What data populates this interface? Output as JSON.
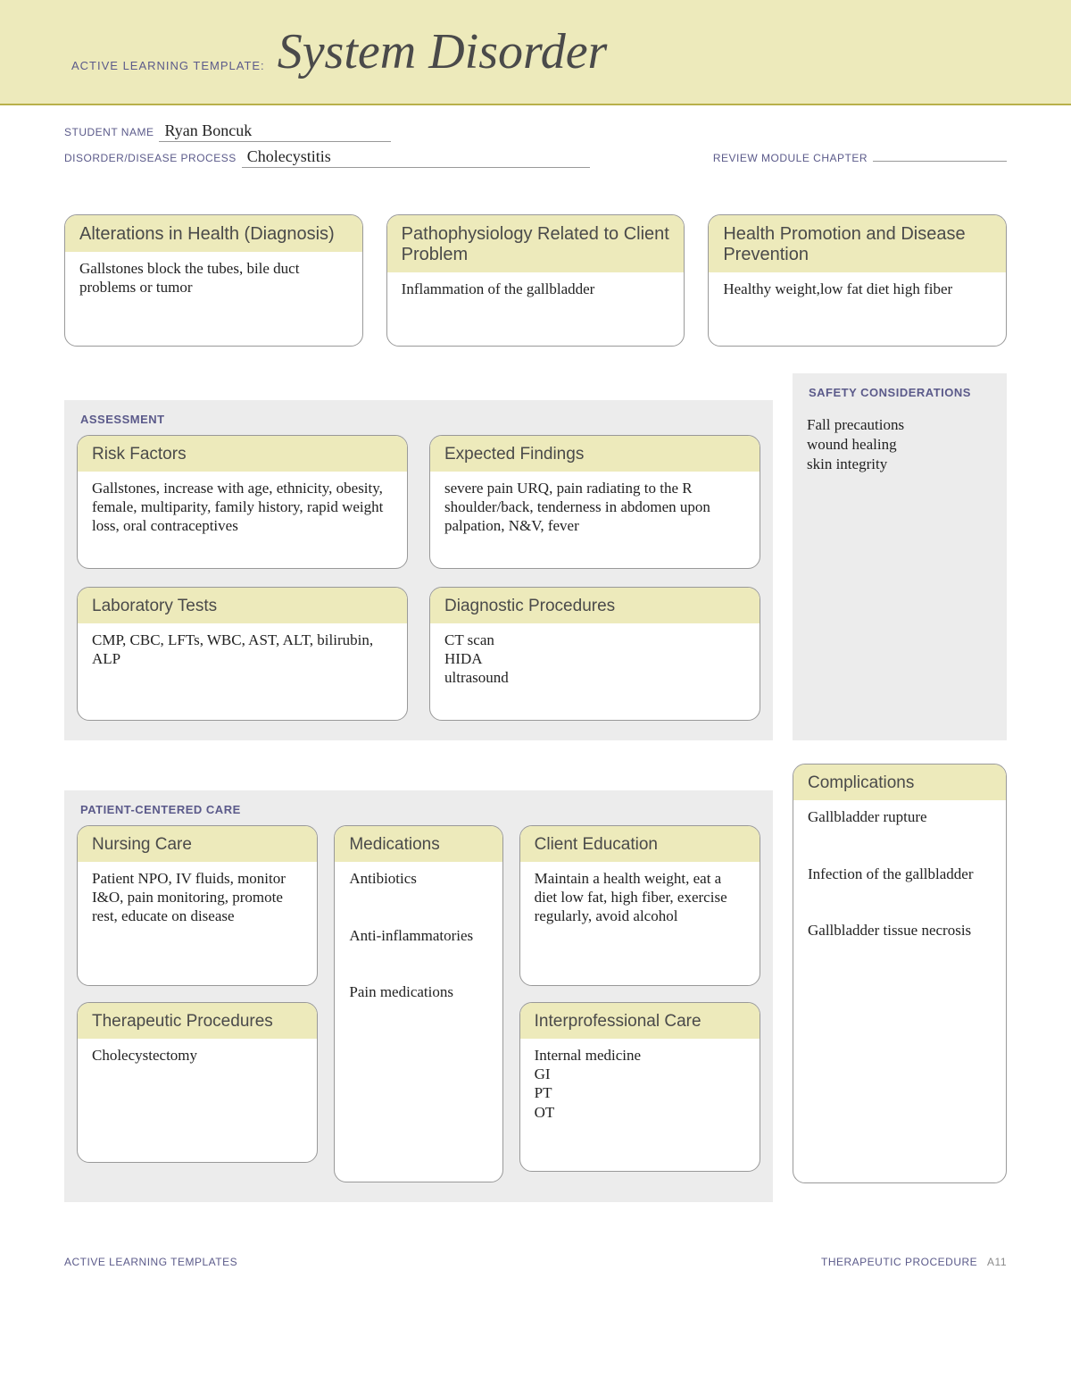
{
  "colors": {
    "band": "#edeabb",
    "band_border": "#b8b04a",
    "section_bg": "#ececec",
    "label_purple": "#5b5a8a",
    "text": "#222222",
    "card_border": "#999999"
  },
  "header": {
    "prefix": "ACTIVE LEARNING TEMPLATE:",
    "title": "System Disorder"
  },
  "fields": {
    "student_name_label": "STUDENT NAME",
    "student_name": "Ryan Boncuk",
    "disorder_label": "DISORDER/DISEASE PROCESS",
    "disorder": "Cholecystitis",
    "review_label": "REVIEW MODULE CHAPTER"
  },
  "top": {
    "alterations": {
      "title": "Alterations in Health (Diagnosis)",
      "body": "Gallstones block the tubes, bile duct problems or tumor"
    },
    "patho": {
      "title": "Pathophysiology Related to Client Problem",
      "body": "Inflammation of the gallbladder"
    },
    "promotion": {
      "title": "Health Promotion and Disease Prevention",
      "body": "Healthy weight,low fat diet high fiber"
    }
  },
  "assessment": {
    "label": "ASSESSMENT",
    "risk": {
      "title": "Risk Factors",
      "body": "Gallstones, increase with age, ethnicity, obesity, female, multiparity, family history, rapid weight loss, oral contraceptives"
    },
    "findings": {
      "title": "Expected Findings",
      "body": "severe pain URQ, pain radiating to the R shoulder/back, tenderness in abdomen upon palpation, N&V, fever"
    },
    "labs": {
      "title": "Laboratory Tests",
      "body": "CMP, CBC, LFTs, WBC, AST, ALT, bilirubin, ALP"
    },
    "diag": {
      "title": "Diagnostic Procedures",
      "body": "CT scan\nHIDA\nultrasound"
    }
  },
  "safety": {
    "label": "SAFETY CONSIDERATIONS",
    "body": "Fall precautions\nwound healing\nskin integrity"
  },
  "pcc": {
    "label": "PATIENT-CENTERED CARE",
    "nursing": {
      "title": "Nursing Care",
      "body": "Patient NPO, IV fluids, monitor I&O, pain monitoring, promote rest, educate on disease"
    },
    "meds": {
      "title": "Medications",
      "body": "Antibiotics\n\nAnti-inflammatories\n\nPain medications"
    },
    "education": {
      "title": "Client Education",
      "body": "Maintain a health weight, eat a diet low fat, high fiber, exercise regularly, avoid alcohol"
    },
    "therapeutic": {
      "title": "Therapeutic Procedures",
      "body": "Cholecystectomy"
    },
    "interprof": {
      "title": "Interprofessional Care",
      "body": "Internal medicine\nGI\nPT\nOT"
    }
  },
  "complications": {
    "title": "Complications",
    "body": "Gallbladder rupture\n\nInfection of the gallbladder\n\nGallbladder tissue necrosis"
  },
  "footer": {
    "left": "ACTIVE LEARNING TEMPLATES",
    "right_label": "THERAPEUTIC PROCEDURE",
    "page": "A11"
  }
}
